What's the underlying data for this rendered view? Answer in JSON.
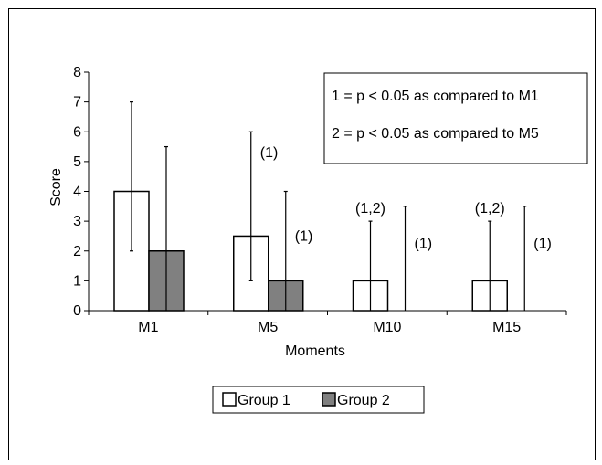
{
  "chart_data": {
    "type": "bar",
    "title": "",
    "xlabel": "Moments",
    "ylabel": "Score",
    "ylim": [
      0,
      8
    ],
    "yticks": [
      "0",
      "1",
      "2",
      "3",
      "4",
      "5",
      "6",
      "7",
      "8"
    ],
    "categories": [
      "M1",
      "M5",
      "M10",
      "M15"
    ],
    "grid": false,
    "legend_position": "bottom",
    "series": [
      {
        "name": "Group 1",
        "color": "#ffffff",
        "values": [
          4,
          2.5,
          1,
          1
        ],
        "error_low": [
          2,
          1,
          0,
          0
        ],
        "error_high": [
          7,
          6,
          3,
          3
        ],
        "annotations": [
          "",
          "",
          "(1,2)",
          "(1,2)"
        ]
      },
      {
        "name": "Group 2",
        "color": "#808080",
        "values": [
          2,
          1,
          0,
          0
        ],
        "error_low": [
          0,
          0,
          0,
          0
        ],
        "error_high": [
          5.5,
          4,
          3.5,
          3.5
        ],
        "annotations": [
          "",
          "(1)",
          "(1)",
          "(1)"
        ]
      }
    ],
    "extra_annotations": [
      {
        "category": "M5",
        "series": "Group 1",
        "text": "(1)"
      }
    ],
    "note_box": [
      "1 = p < 0.05 as compared to M1",
      "2 = p < 0.05 as compared to M5"
    ]
  }
}
